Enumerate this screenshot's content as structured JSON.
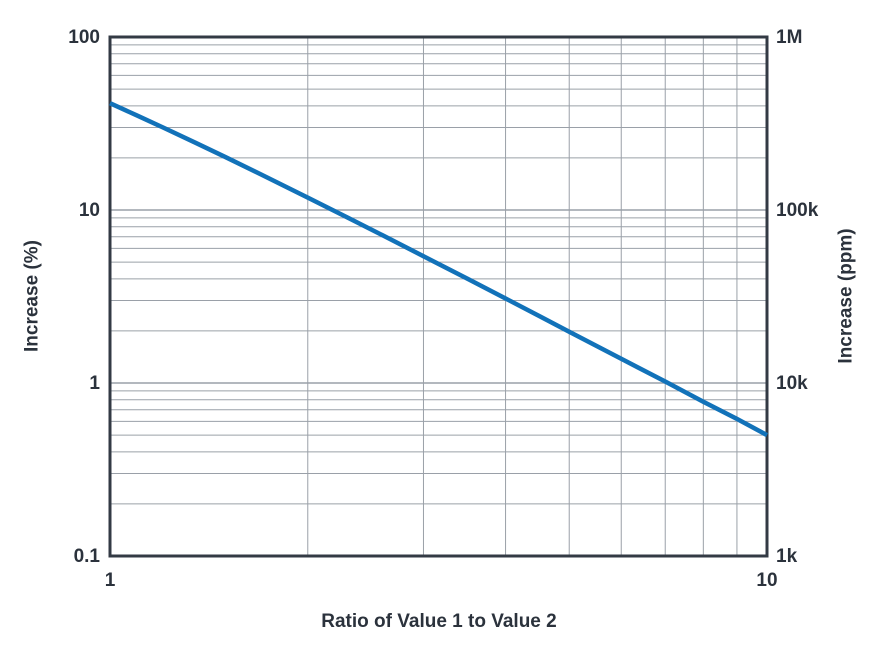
{
  "colors": {
    "line": "#1272B9",
    "grid": "#9AA0A8",
    "axis_frame": "#333A44",
    "text": "#2B323C",
    "background": "#FFFFFF"
  },
  "chart_data": {
    "type": "line",
    "title": "",
    "xlabel": "Ratio of Value 1 to Value 2",
    "ylabel_left": "Increase (%)",
    "ylabel_right": "Increase (ppm)",
    "x_scale": "log",
    "y_scale": "log",
    "xlim": [
      1,
      10
    ],
    "ylim_left_percent": [
      0.1,
      100
    ],
    "ylim_right_ppm": [
      1000,
      1000000
    ],
    "grid": true,
    "legend": false,
    "x_ticks": [
      {
        "value": 1,
        "label": "1"
      },
      {
        "value": 10,
        "label": "10"
      }
    ],
    "y_ticks_left": [
      {
        "value": 100,
        "label": "100"
      },
      {
        "value": 10,
        "label": "10"
      },
      {
        "value": 1,
        "label": "1"
      },
      {
        "value": 0.1,
        "label": "0.1"
      }
    ],
    "y_ticks_right": [
      {
        "value": 100,
        "label": "1M"
      },
      {
        "value": 10,
        "label": "100k"
      },
      {
        "value": 1,
        "label": "10k"
      },
      {
        "value": 0.1,
        "label": "1k"
      }
    ],
    "series": [
      {
        "name": "increase-vs-ratio",
        "color": "#1272B9",
        "x": [
          1,
          1.1,
          1.2,
          1.35,
          1.5,
          1.7,
          2,
          2.3,
          2.6,
          3,
          3.5,
          4,
          4.5,
          5,
          6,
          7,
          8,
          9,
          10
        ],
        "y_percent": [
          41.42,
          35.14,
          30.17,
          24.45,
          20.19,
          16.02,
          11.8,
          9.04,
          7.14,
          5.41,
          4.0,
          3.08,
          2.44,
          1.98,
          1.38,
          1.02,
          0.78,
          0.62,
          0.5
        ]
      }
    ]
  }
}
